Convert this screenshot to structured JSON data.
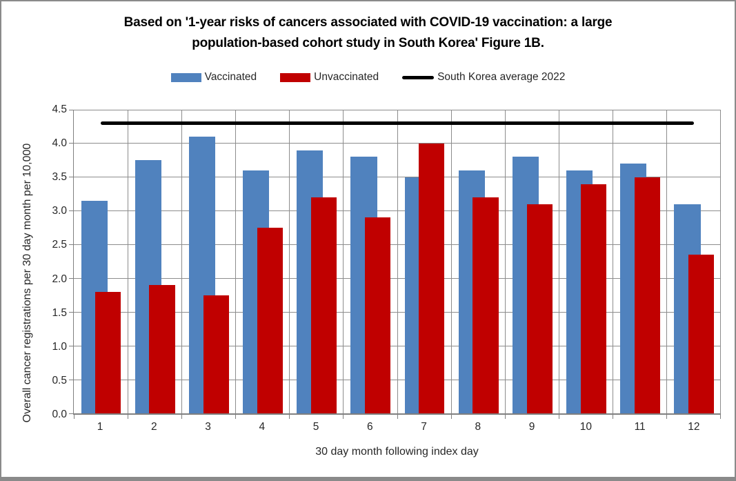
{
  "title": {
    "line1": "Based on '1-year risks of cancers associated with COVID-19 vaccination: a large",
    "line2": "population-based cohort study in South Korea' Figure 1B."
  },
  "chart_data": {
    "type": "bar",
    "categories": [
      "1",
      "2",
      "3",
      "4",
      "5",
      "6",
      "7",
      "8",
      "9",
      "10",
      "11",
      "12"
    ],
    "series": [
      {
        "name": "Vaccinated",
        "color": "#5082BE",
        "values": [
          3.15,
          3.75,
          4.1,
          3.6,
          3.9,
          3.8,
          3.5,
          3.6,
          3.8,
          3.6,
          3.7,
          3.1
        ]
      },
      {
        "name": "Unvaccinated",
        "color": "#C00000",
        "values": [
          1.8,
          1.9,
          1.75,
          2.75,
          3.2,
          2.9,
          4.0,
          3.2,
          3.1,
          3.4,
          3.5,
          2.35
        ]
      }
    ],
    "reference_line": {
      "name": "South Korea average 2022",
      "value": 4.3,
      "color": "#000000"
    },
    "xlabel": "30 day month following index day",
    "ylabel": "Overall cancer registrations per 30 day month per 10,000",
    "ylim": [
      0,
      4.5
    ],
    "yticks": [
      "0.0",
      "0.5",
      "1.0",
      "1.5",
      "2.0",
      "2.5",
      "3.0",
      "3.5",
      "4.0",
      "4.5"
    ],
    "grid": true,
    "legend_position": "top"
  }
}
